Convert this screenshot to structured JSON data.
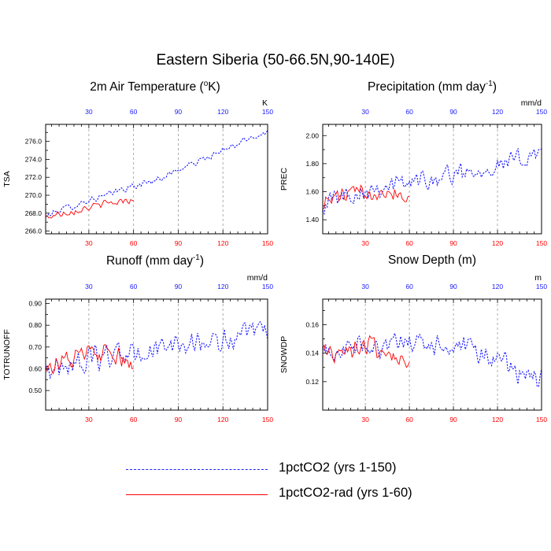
{
  "title": "Eastern Siberia (50-66.5N,90-140E)",
  "panels": {
    "tsa": {
      "title_main": "2m Air Temperature (",
      "title_sup_pre": "o",
      "title_tail": "K)",
      "unit": "K",
      "ylabel": "TSA"
    },
    "prec": {
      "title_main": "Precipitation (mm day",
      "title_sup": "-1",
      "title_tail": ")",
      "unit": "mm/d",
      "ylabel": "PREC"
    },
    "runoff": {
      "title_main": "Runoff (mm day",
      "title_sup": "-1",
      "title_tail": ")",
      "unit": "mm/d",
      "ylabel": "TOTRUNOFF"
    },
    "snow": {
      "title_main": "Snow Depth (m)",
      "unit": "m",
      "ylabel": "SNOWDP"
    }
  },
  "legend": {
    "series1": "1pctCO2 (yrs 1-150)",
    "series2": "1pctCO2-rad (yrs 1-60)"
  },
  "colors": {
    "series1": "#1a1aff",
    "series2": "#ff0000"
  },
  "chart_data": [
    {
      "type": "line",
      "ylabel": "TSA",
      "unit": "K",
      "xlim": [
        1,
        150
      ],
      "ylim": [
        265.7,
        277.9
      ],
      "xticks": [
        30,
        60,
        90,
        120,
        150
      ],
      "yticks": [
        266.0,
        268.0,
        270.0,
        272.0,
        274.0,
        276.0
      ],
      "ytick_labels": [
        "266.0",
        "268.0",
        "270.0",
        "272.0",
        "274.0",
        "276.0"
      ],
      "grid_x": [
        30,
        60,
        90,
        120
      ],
      "series": [
        {
          "name": "1pctCO2 (yrs 1-150)",
          "style": "dashed",
          "x_step": 10,
          "anchors": [
            267.6,
            268.4,
            268.9,
            269.5,
            269.9,
            270.6,
            271.0,
            271.5,
            272.1,
            272.9,
            273.6,
            274.3,
            275.0,
            275.8,
            276.6,
            277.1
          ],
          "noise": 0.6
        },
        {
          "name": "1pctCO2-rad (yrs 1-60)",
          "style": "solid",
          "x_step": 10,
          "anchors": [
            267.5,
            268.0,
            268.3,
            268.7,
            269.0,
            269.3,
            269.6
          ],
          "noise": 0.7,
          "x_end": 60
        }
      ]
    },
    {
      "type": "line",
      "ylabel": "PREC",
      "unit": "mm/d",
      "xlim": [
        1,
        150
      ],
      "ylim": [
        1.3,
        2.08
      ],
      "xticks": [
        30,
        60,
        90,
        120,
        150
      ],
      "yticks": [
        1.4,
        1.6,
        1.8,
        2.0
      ],
      "ytick_labels": [
        "1.40",
        "1.60",
        "1.80",
        "2.00"
      ],
      "grid_x": [
        30,
        60,
        90,
        120
      ],
      "series": [
        {
          "name": "1pctCO2 (yrs 1-150)",
          "style": "dashed",
          "x_step": 10,
          "anchors": [
            1.52,
            1.56,
            1.58,
            1.62,
            1.64,
            1.65,
            1.67,
            1.69,
            1.71,
            1.73,
            1.75,
            1.77,
            1.79,
            1.82,
            1.85,
            1.92
          ],
          "noise": 0.12
        },
        {
          "name": "1pctCO2-rad (yrs 1-60)",
          "style": "solid",
          "x_step": 10,
          "anchors": [
            1.52,
            1.56,
            1.58,
            1.6,
            1.62,
            1.6,
            1.55
          ],
          "noise": 0.11,
          "x_end": 60
        }
      ]
    },
    {
      "type": "line",
      "ylabel": "TOTRUNOFF",
      "unit": "mm/d",
      "xlim": [
        1,
        150
      ],
      "ylim": [
        0.41,
        0.92
      ],
      "xticks": [
        30,
        60,
        90,
        120,
        150
      ],
      "yticks": [
        0.5,
        0.6,
        0.7,
        0.8,
        0.9
      ],
      "ytick_labels": [
        "0.50",
        "0.60",
        "0.70",
        "0.80",
        "0.90"
      ],
      "grid_x": [
        30,
        60,
        90,
        120
      ],
      "series": [
        {
          "name": "1pctCO2 (yrs 1-150)",
          "style": "dashed",
          "x_step": 10,
          "anchors": [
            0.6,
            0.61,
            0.62,
            0.64,
            0.66,
            0.67,
            0.66,
            0.68,
            0.7,
            0.71,
            0.72,
            0.72,
            0.73,
            0.74,
            0.76,
            0.78
          ],
          "noise": 0.09
        },
        {
          "name": "1pctCO2-rad (yrs 1-60)",
          "style": "solid",
          "x_step": 10,
          "anchors": [
            0.62,
            0.63,
            0.65,
            0.67,
            0.66,
            0.64,
            0.6
          ],
          "noise": 0.08,
          "x_end": 60
        }
      ]
    },
    {
      "type": "line",
      "ylabel": "SNOWDP",
      "unit": "m",
      "xlim": [
        1,
        150
      ],
      "ylim": [
        0.1,
        0.178
      ],
      "xticks": [
        30,
        60,
        90,
        120,
        150
      ],
      "yticks": [
        0.12,
        0.14,
        0.16
      ],
      "ytick_labels": [
        "0.12",
        "0.14",
        "0.16"
      ],
      "grid_x": [
        30,
        60,
        90,
        120
      ],
      "series": [
        {
          "name": "1pctCO2 (yrs 1-150)",
          "style": "dashed",
          "x_step": 10,
          "anchors": [
            0.14,
            0.142,
            0.143,
            0.145,
            0.146,
            0.146,
            0.147,
            0.146,
            0.145,
            0.143,
            0.141,
            0.138,
            0.135,
            0.13,
            0.124,
            0.12
          ],
          "noise": 0.014
        },
        {
          "name": "1pctCO2-rad (yrs 1-60)",
          "style": "solid",
          "x_step": 10,
          "anchors": [
            0.14,
            0.142,
            0.143,
            0.145,
            0.143,
            0.138,
            0.128
          ],
          "noise": 0.012,
          "x_end": 60
        }
      ]
    }
  ]
}
